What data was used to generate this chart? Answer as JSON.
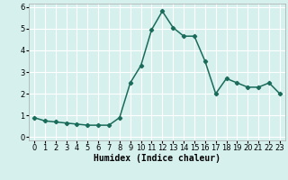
{
  "title": "",
  "xlabel": "Humidex (Indice chaleur)",
  "ylabel": "",
  "x": [
    0,
    1,
    2,
    3,
    4,
    5,
    6,
    7,
    8,
    9,
    10,
    11,
    12,
    13,
    14,
    15,
    16,
    17,
    18,
    19,
    20,
    21,
    22,
    23
  ],
  "y": [
    0.9,
    0.75,
    0.7,
    0.65,
    0.6,
    0.55,
    0.55,
    0.55,
    0.9,
    2.5,
    3.3,
    4.95,
    5.8,
    5.05,
    4.65,
    4.65,
    3.5,
    2.0,
    2.7,
    2.5,
    2.3,
    2.3,
    2.5,
    2.0
  ],
  "line_color": "#1a6b5a",
  "marker": "D",
  "marker_size": 2.2,
  "background_color": "#d6f0ee",
  "grid_color": "#ffffff",
  "ylim": [
    -0.15,
    6.15
  ],
  "xlim": [
    -0.5,
    23.5
  ],
  "yticks": [
    0,
    1,
    2,
    3,
    4,
    5,
    6
  ],
  "xticks": [
    0,
    1,
    2,
    3,
    4,
    5,
    6,
    7,
    8,
    9,
    10,
    11,
    12,
    13,
    14,
    15,
    16,
    17,
    18,
    19,
    20,
    21,
    22,
    23
  ],
  "xtick_labels": [
    "0",
    "1",
    "2",
    "3",
    "4",
    "5",
    "6",
    "7",
    "8",
    "9",
    "10",
    "11",
    "12",
    "13",
    "14",
    "15",
    "16",
    "17",
    "18",
    "19",
    "20",
    "21",
    "22",
    "23"
  ],
  "title_fontsize": 8,
  "label_fontsize": 7,
  "tick_fontsize": 6,
  "linewidth": 1.1
}
